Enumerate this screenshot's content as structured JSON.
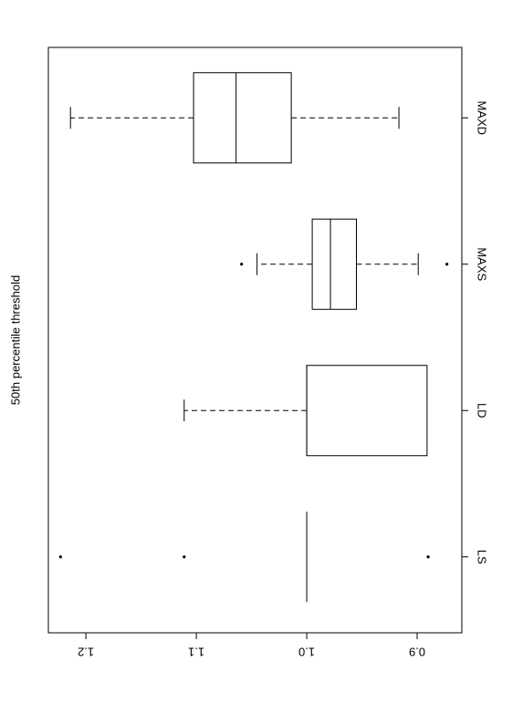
{
  "chart_data": {
    "type": "boxplot",
    "ylabel": "50th percentile threshold",
    "categories": [
      "LS",
      "LD",
      "MAXS",
      "MAXD"
    ],
    "boxes": [
      {
        "min": 1.0,
        "q1": 1.0,
        "median": 1.0,
        "q3": 1.0,
        "max": 1.0,
        "outliers": [
          1.223,
          1.111,
          0.89
        ]
      },
      {
        "min": 0.891,
        "q1": 0.891,
        "median": 1.0,
        "q3": 1.0,
        "max": 1.111,
        "outliers": []
      },
      {
        "min": 0.899,
        "q1": 0.955,
        "median": 0.9785,
        "q3": 0.995,
        "max": 1.045,
        "outliers": [
          1.059,
          0.873
        ]
      },
      {
        "min": 0.9165,
        "q1": 1.014,
        "median": 1.064,
        "q3": 1.1025,
        "max": 1.214,
        "outliers": []
      }
    ],
    "color": "#000000",
    "ylim": [
      0.8595,
      1.234
    ],
    "yticks": [
      {
        "value": 0.9,
        "label": "0.9"
      },
      {
        "value": 1.0,
        "label": "1.0"
      },
      {
        "value": 1.1,
        "label": "1.1"
      },
      {
        "value": 1.2,
        "label": "1.2"
      }
    ]
  }
}
